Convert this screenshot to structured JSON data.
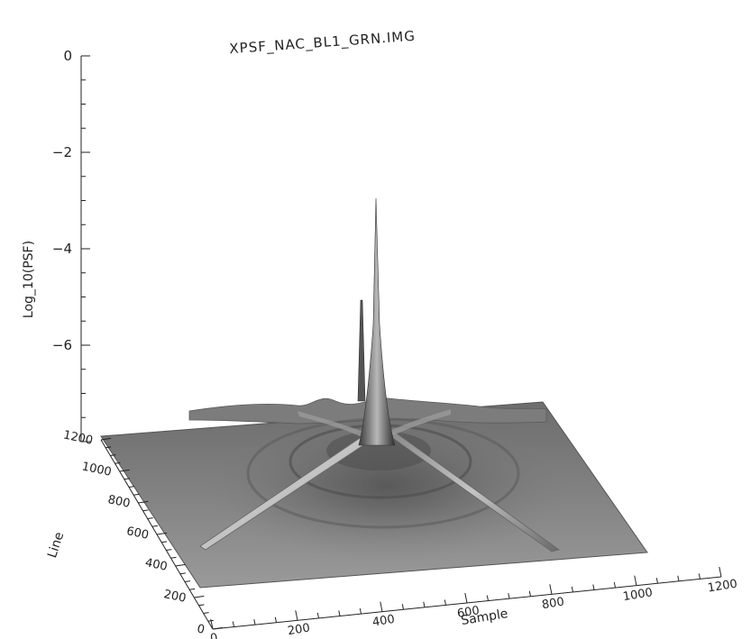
{
  "chart_data": {
    "type": "surface",
    "title": "XPSF_NAC_BL1_GRN.IMG",
    "xlabel": "Sample",
    "ylabel": "Line",
    "zlabel": "Log_10(PSF)",
    "x_ticks": [
      "0",
      "200",
      "400",
      "600",
      "800",
      "1000",
      "1200"
    ],
    "y_ticks": [
      "0",
      "200",
      "400",
      "600",
      "800",
      "1000",
      "1200"
    ],
    "z_ticks": [
      "0",
      "−2",
      "−4",
      "−6"
    ],
    "xlim": [
      0,
      1200
    ],
    "ylim": [
      0,
      1200
    ],
    "zlim": [
      -8,
      0
    ],
    "surface": {
      "background_level": -7.5,
      "peak": {
        "sample": 512,
        "line": 512,
        "value": -3.0
      },
      "secondary_spike": {
        "value": -5.1
      },
      "features": [
        "central spike",
        "diffraction spikes along diagonals",
        "concentric rings"
      ]
    }
  }
}
